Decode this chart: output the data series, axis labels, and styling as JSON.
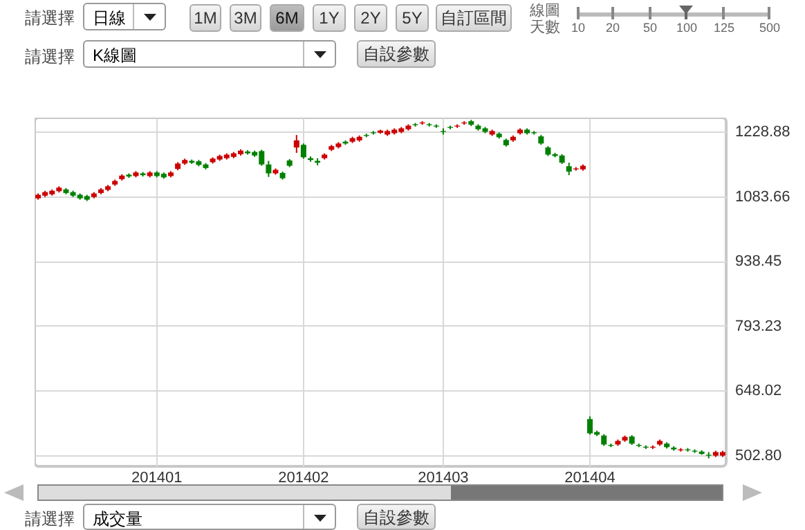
{
  "chart_data": {
    "type": "candlestick",
    "categories": [
      null,
      null,
      null,
      null,
      null,
      null,
      null,
      null,
      null,
      null,
      null,
      null,
      null,
      null,
      null,
      null,
      null,
      "201401",
      null,
      null,
      null,
      null,
      null,
      null,
      null,
      null,
      null,
      null,
      null,
      null,
      null,
      null,
      null,
      null,
      null,
      null,
      null,
      null,
      "201402",
      null,
      null,
      null,
      null,
      null,
      null,
      null,
      null,
      null,
      null,
      null,
      null,
      null,
      null,
      null,
      null,
      null,
      null,
      null,
      "201403",
      null,
      null,
      null,
      null,
      null,
      null,
      null,
      null,
      null,
      null,
      null,
      null,
      null,
      null,
      null,
      null,
      null,
      null,
      null,
      null,
      "201404",
      null,
      null,
      null,
      null,
      null,
      null,
      null,
      null,
      null,
      null,
      null,
      null,
      null,
      null,
      null,
      null,
      null,
      null,
      null
    ],
    "ohlc": [
      [
        1079,
        1090,
        1076,
        1087
      ],
      [
        1085,
        1096,
        1082,
        1093
      ],
      [
        1088,
        1099,
        1085,
        1096
      ],
      [
        1095,
        1106,
        1092,
        1103
      ],
      [
        1099,
        1102,
        1088,
        1091
      ],
      [
        1093,
        1096,
        1082,
        1085
      ],
      [
        1087,
        1090,
        1076,
        1079
      ],
      [
        1084,
        1087,
        1073,
        1076
      ],
      [
        1082,
        1093,
        1079,
        1090
      ],
      [
        1091,
        1102,
        1088,
        1099
      ],
      [
        1098,
        1109,
        1095,
        1106
      ],
      [
        1110,
        1121,
        1107,
        1118
      ],
      [
        1122,
        1133,
        1119,
        1130
      ],
      [
        1132,
        1135,
        1125,
        1128
      ],
      [
        1129,
        1140,
        1126,
        1137
      ],
      [
        1135,
        1138,
        1128,
        1131
      ],
      [
        1129,
        1140,
        1126,
        1137
      ],
      [
        1137,
        1140,
        1126,
        1129
      ],
      [
        1134,
        1137,
        1123,
        1126
      ],
      [
        1129,
        1140,
        1126,
        1137
      ],
      [
        1145,
        1160,
        1142,
        1157
      ],
      [
        1157,
        1168,
        1154,
        1165
      ],
      [
        1163,
        1166,
        1156,
        1159
      ],
      [
        1162,
        1165,
        1151,
        1154
      ],
      [
        1155,
        1158,
        1144,
        1147
      ],
      [
        1160,
        1171,
        1157,
        1168
      ],
      [
        1166,
        1177,
        1163,
        1174
      ],
      [
        1169,
        1180,
        1166,
        1177
      ],
      [
        1172,
        1183,
        1169,
        1180
      ],
      [
        1178,
        1189,
        1175,
        1186
      ],
      [
        1184,
        1187,
        1177,
        1180
      ],
      [
        1183,
        1186,
        1172,
        1175
      ],
      [
        1185,
        1188,
        1152,
        1155
      ],
      [
        1155,
        1163,
        1127,
        1135
      ],
      [
        1135,
        1146,
        1132,
        1143
      ],
      [
        1136,
        1139,
        1121,
        1124
      ],
      [
        1164,
        1167,
        1149,
        1152
      ],
      [
        1193,
        1221,
        1181,
        1209
      ],
      [
        1199,
        1202,
        1168,
        1171
      ],
      [
        1169,
        1173,
        1161,
        1165
      ],
      [
        1163,
        1169,
        1153,
        1159
      ],
      [
        1169,
        1180,
        1166,
        1177
      ],
      [
        1188,
        1199,
        1185,
        1196
      ],
      [
        1194,
        1205,
        1191,
        1202
      ],
      [
        1206,
        1209,
        1199,
        1202
      ],
      [
        1206,
        1217,
        1203,
        1214
      ],
      [
        1209,
        1220,
        1206,
        1217
      ],
      [
        1221,
        1224,
        1216,
        1219
      ],
      [
        1227,
        1230,
        1222,
        1225
      ],
      [
        1226,
        1233,
        1224,
        1231
      ],
      [
        1222,
        1233,
        1219,
        1230
      ],
      [
        1225,
        1236,
        1222,
        1233
      ],
      [
        1228,
        1239,
        1225,
        1236
      ],
      [
        1234,
        1245,
        1231,
        1242
      ],
      [
        1245,
        1248,
        1240,
        1243
      ],
      [
        1247,
        1252,
        1244,
        1249
      ],
      [
        1245,
        1248,
        1240,
        1243
      ],
      [
        1242,
        1245,
        1237,
        1240
      ],
      [
        1230,
        1236,
        1222,
        1228
      ],
      [
        1239,
        1242,
        1234,
        1237
      ],
      [
        1240,
        1245,
        1237,
        1242
      ],
      [
        1247,
        1252,
        1244,
        1249
      ],
      [
        1252,
        1255,
        1241,
        1244
      ],
      [
        1242,
        1245,
        1231,
        1234
      ],
      [
        1236,
        1239,
        1225,
        1228
      ],
      [
        1222,
        1233,
        1219,
        1230
      ],
      [
        1224,
        1227,
        1213,
        1216
      ],
      [
        1210,
        1213,
        1195,
        1198
      ],
      [
        1209,
        1220,
        1206,
        1217
      ],
      [
        1225,
        1236,
        1222,
        1233
      ],
      [
        1233,
        1236,
        1222,
        1225
      ],
      [
        1227,
        1230,
        1222,
        1225
      ],
      [
        1218,
        1221,
        1199,
        1202
      ],
      [
        1193,
        1196,
        1174,
        1177
      ],
      [
        1178,
        1181,
        1171,
        1174
      ],
      [
        1175,
        1178,
        1156,
        1159
      ],
      [
        1151,
        1159,
        1131,
        1139
      ],
      [
        1144,
        1149,
        1141,
        1146
      ],
      [
        1144,
        1155,
        1141,
        1152
      ],
      [
        584,
        590,
        549,
        552
      ],
      [
        555,
        558,
        546,
        549
      ],
      [
        547,
        550,
        524,
        527
      ],
      [
        526,
        529,
        521,
        524
      ],
      [
        527,
        538,
        524,
        535
      ],
      [
        536,
        547,
        533,
        544
      ],
      [
        545,
        548,
        526,
        529
      ],
      [
        526,
        529,
        521,
        524
      ],
      [
        522,
        525,
        517,
        520
      ],
      [
        520,
        525,
        517,
        522
      ],
      [
        527,
        538,
        524,
        535
      ],
      [
        529,
        532,
        518,
        521
      ],
      [
        520,
        523,
        513,
        516
      ],
      [
        514,
        519,
        511,
        516
      ],
      [
        516,
        519,
        511,
        514
      ],
      [
        513,
        516,
        508,
        511
      ],
      [
        511,
        514,
        504,
        506
      ],
      [
        504,
        510,
        496,
        502
      ],
      [
        502,
        513,
        499,
        510
      ],
      [
        502,
        513,
        499,
        510
      ]
    ],
    "colors": [
      "#cc0000",
      "#cc0000",
      "#cc0000",
      "#cc0000",
      "#008000",
      "#008000",
      "#008000",
      "#008000",
      "#cc0000",
      "#cc0000",
      "#cc0000",
      "#cc0000",
      "#cc0000",
      "#008000",
      "#cc0000",
      "#008000",
      "#cc0000",
      "#008000",
      "#008000",
      "#cc0000",
      "#cc0000",
      "#cc0000",
      "#008000",
      "#008000",
      "#008000",
      "#cc0000",
      "#cc0000",
      "#cc0000",
      "#cc0000",
      "#cc0000",
      "#008000",
      "#008000",
      "#008000",
      "#008000",
      "#cc0000",
      "#008000",
      "#008000",
      "#cc0000",
      "#008000",
      "#008000",
      "#008000",
      "#cc0000",
      "#cc0000",
      "#cc0000",
      "#008000",
      "#cc0000",
      "#cc0000",
      "#008000",
      "#008000",
      "#cc0000",
      "#cc0000",
      "#cc0000",
      "#cc0000",
      "#cc0000",
      "#008000",
      "#cc0000",
      "#008000",
      "#008000",
      "#008000",
      "#008000",
      "#cc0000",
      "#cc0000",
      "#008000",
      "#008000",
      "#008000",
      "#cc0000",
      "#008000",
      "#008000",
      "#cc0000",
      "#cc0000",
      "#008000",
      "#008000",
      "#008000",
      "#008000",
      "#008000",
      "#008000",
      "#008000",
      "#cc0000",
      "#cc0000",
      "#008000",
      "#008000",
      "#008000",
      "#008000",
      "#cc0000",
      "#cc0000",
      "#008000",
      "#008000",
      "#008000",
      "#cc0000",
      "#cc0000",
      "#008000",
      "#008000",
      "#cc0000",
      "#008000",
      "#008000",
      "#008000",
      "#008000",
      "#cc0000",
      "#cc0000"
    ],
    "ylim": [
      478,
      1260
    ],
    "yticks": [
      {
        "value": 502.8,
        "label": "502.80"
      },
      648.02,
      793.23,
      938.45,
      1083.66,
      1228.88
    ],
    "grid": true,
    "annotations": [
      "請選擇",
      "日線",
      "1M",
      "3M",
      "6M",
      "1Y",
      "2Y",
      "5Y",
      "自訂區間",
      "線圖",
      "天數",
      "10",
      "20",
      "50",
      "100",
      "125",
      "500",
      "請選擇",
      "K線圖",
      "自設參數",
      "請選擇",
      "成交量",
      "自設參數"
    ]
  }
}
